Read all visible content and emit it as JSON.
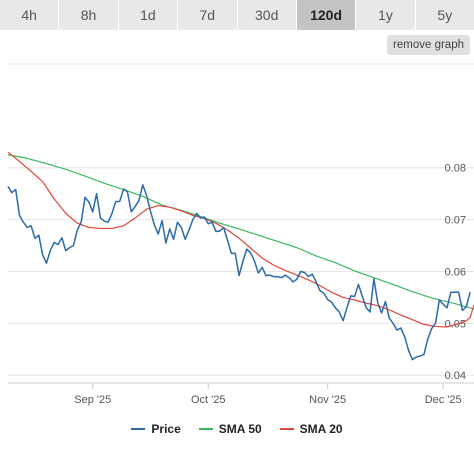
{
  "tabs": [
    {
      "label": "4h",
      "active": false
    },
    {
      "label": "8h",
      "active": false
    },
    {
      "label": "1d",
      "active": false
    },
    {
      "label": "7d",
      "active": false
    },
    {
      "label": "30d",
      "active": false
    },
    {
      "label": "120d",
      "active": true
    },
    {
      "label": "1y",
      "active": false
    },
    {
      "label": "5y",
      "active": false
    }
  ],
  "remove_graph_label": "remove graph",
  "chart_data": {
    "type": "line",
    "ylim": [
      0.0385,
      0.1
    ],
    "y_ticks": [
      0.04,
      0.05,
      0.06,
      0.07,
      0.08
    ],
    "y_tick_labels": [
      "0.04",
      "0.05",
      "0.06",
      "0.07",
      "0.08"
    ],
    "x_range": [
      0,
      121
    ],
    "x_ticks": [
      {
        "x": 22,
        "label": "Sep '25"
      },
      {
        "x": 52,
        "label": "Oct '25"
      },
      {
        "x": 83,
        "label": "Nov '25"
      },
      {
        "x": 113,
        "label": "Dec '25"
      }
    ],
    "grid": true,
    "legend_position": "bottom",
    "series": [
      {
        "name": "Price",
        "color": "#2b6aa8",
        "points": [
          [
            0,
            0.0764
          ],
          [
            1,
            0.0752
          ],
          [
            2,
            0.0758
          ],
          [
            3,
            0.0708
          ],
          [
            4,
            0.0695
          ],
          [
            5,
            0.0685
          ],
          [
            6,
            0.0688
          ],
          [
            7,
            0.0664
          ],
          [
            8,
            0.067
          ],
          [
            9,
            0.0632
          ],
          [
            10,
            0.0616
          ],
          [
            11,
            0.0641
          ],
          [
            12,
            0.0656
          ],
          [
            13,
            0.0652
          ],
          [
            14,
            0.0665
          ],
          [
            15,
            0.064
          ],
          [
            16,
            0.0646
          ],
          [
            17,
            0.065
          ],
          [
            18,
            0.068
          ],
          [
            19,
            0.0695
          ],
          [
            20,
            0.0743
          ],
          [
            21,
            0.0734
          ],
          [
            22,
            0.0715
          ],
          [
            23,
            0.075
          ],
          [
            24,
            0.0703
          ],
          [
            25,
            0.0697
          ],
          [
            26,
            0.0695
          ],
          [
            27,
            0.0712
          ],
          [
            28,
            0.0735
          ],
          [
            29,
            0.0735
          ],
          [
            30,
            0.0759
          ],
          [
            31,
            0.0754
          ],
          [
            32,
            0.0715
          ],
          [
            33,
            0.0725
          ],
          [
            34,
            0.0737
          ],
          [
            35,
            0.0767
          ],
          [
            36,
            0.0746
          ],
          [
            37,
            0.0716
          ],
          [
            38,
            0.069
          ],
          [
            39,
            0.0672
          ],
          [
            40,
            0.0698
          ],
          [
            41,
            0.0655
          ],
          [
            42,
            0.0682
          ],
          [
            43,
            0.0662
          ],
          [
            44,
            0.0695
          ],
          [
            45,
            0.0685
          ],
          [
            46,
            0.0662
          ],
          [
            47,
            0.068
          ],
          [
            48,
            0.07
          ],
          [
            49,
            0.0712
          ],
          [
            50,
            0.0703
          ],
          [
            51,
            0.0705
          ],
          [
            52,
            0.0692
          ],
          [
            53,
            0.0695
          ],
          [
            54,
            0.0677
          ],
          [
            55,
            0.0678
          ],
          [
            56,
            0.0685
          ],
          [
            57,
            0.066
          ],
          [
            58,
            0.0635
          ],
          [
            59,
            0.0635
          ],
          [
            60,
            0.0592
          ],
          [
            61,
            0.062
          ],
          [
            62,
            0.0643
          ],
          [
            63,
            0.0636
          ],
          [
            64,
            0.062
          ],
          [
            65,
            0.0597
          ],
          [
            66,
            0.0608
          ],
          [
            67,
            0.0592
          ],
          [
            68,
            0.0593
          ],
          [
            69,
            0.059
          ],
          [
            70,
            0.059
          ],
          [
            71,
            0.0588
          ],
          [
            72,
            0.0593
          ],
          [
            73,
            0.0588
          ],
          [
            74,
            0.058
          ],
          [
            75,
            0.0585
          ],
          [
            76,
            0.06
          ],
          [
            77,
            0.0598
          ],
          [
            78,
            0.059
          ],
          [
            79,
            0.0595
          ],
          [
            80,
            0.058
          ],
          [
            81,
            0.0563
          ],
          [
            82,
            0.0558
          ],
          [
            83,
            0.0546
          ],
          [
            84,
            0.0541
          ],
          [
            85,
            0.053
          ],
          [
            86,
            0.0522
          ],
          [
            87,
            0.0505
          ],
          [
            88,
            0.053
          ],
          [
            89,
            0.0553
          ],
          [
            90,
            0.0552
          ],
          [
            91,
            0.0575
          ],
          [
            92,
            0.0552
          ],
          [
            93,
            0.053
          ],
          [
            94,
            0.0522
          ],
          [
            95,
            0.0586
          ],
          [
            96,
            0.054
          ],
          [
            97,
            0.052
          ],
          [
            98,
            0.0542
          ],
          [
            99,
            0.051
          ],
          [
            100,
            0.05
          ],
          [
            101,
            0.0487
          ],
          [
            102,
            0.0491
          ],
          [
            103,
            0.0474
          ],
          [
            104,
            0.0448
          ],
          [
            105,
            0.043
          ],
          [
            106,
            0.0435
          ],
          [
            107,
            0.0437
          ],
          [
            108,
            0.044
          ],
          [
            109,
            0.047
          ],
          [
            110,
            0.049
          ],
          [
            111,
            0.05
          ],
          [
            112,
            0.0545
          ],
          [
            113,
            0.0537
          ],
          [
            114,
            0.053
          ],
          [
            115,
            0.056
          ],
          [
            116,
            0.056
          ],
          [
            117,
            0.056
          ],
          [
            118,
            0.0525
          ],
          [
            119,
            0.0532
          ],
          [
            120,
            0.056
          ]
        ]
      },
      {
        "name": "SMA 50",
        "color": "#3cb95f",
        "points": [
          [
            0,
            0.0825
          ],
          [
            5,
            0.0818
          ],
          [
            10,
            0.0808
          ],
          [
            15,
            0.0797
          ],
          [
            20,
            0.0784
          ],
          [
            25,
            0.077
          ],
          [
            30,
            0.0758
          ],
          [
            35,
            0.0745
          ],
          [
            40,
            0.0728
          ],
          [
            45,
            0.0718
          ],
          [
            50,
            0.0706
          ],
          [
            55,
            0.0693
          ],
          [
            60,
            0.0682
          ],
          [
            65,
            0.067
          ],
          [
            70,
            0.0658
          ],
          [
            75,
            0.0646
          ],
          [
            80,
            0.063
          ],
          [
            85,
            0.0617
          ],
          [
            90,
            0.0601
          ],
          [
            95,
            0.0588
          ],
          [
            100,
            0.0575
          ],
          [
            105,
            0.0561
          ],
          [
            110,
            0.0549
          ],
          [
            115,
            0.054
          ],
          [
            120,
            0.053
          ],
          [
            121,
            0.0528
          ]
        ]
      },
      {
        "name": "SMA 20",
        "color": "#e0463c",
        "points": [
          [
            0,
            0.083
          ],
          [
            3,
            0.0812
          ],
          [
            6,
            0.0793
          ],
          [
            9,
            0.0773
          ],
          [
            12,
            0.074
          ],
          [
            15,
            0.0712
          ],
          [
            18,
            0.0693
          ],
          [
            21,
            0.0685
          ],
          [
            24,
            0.0683
          ],
          [
            27,
            0.0683
          ],
          [
            30,
            0.0688
          ],
          [
            33,
            0.0703
          ],
          [
            36,
            0.072
          ],
          [
            39,
            0.0727
          ],
          [
            42,
            0.0724
          ],
          [
            45,
            0.0717
          ],
          [
            48,
            0.0708
          ],
          [
            51,
            0.0702
          ],
          [
            54,
            0.0693
          ],
          [
            57,
            0.068
          ],
          [
            60,
            0.0664
          ],
          [
            63,
            0.0645
          ],
          [
            66,
            0.0626
          ],
          [
            69,
            0.0612
          ],
          [
            72,
            0.0602
          ],
          [
            75,
            0.0593
          ],
          [
            78,
            0.0584
          ],
          [
            81,
            0.0573
          ],
          [
            84,
            0.056
          ],
          [
            87,
            0.055
          ],
          [
            90,
            0.0545
          ],
          [
            93,
            0.0539
          ],
          [
            96,
            0.0534
          ],
          [
            99,
            0.0526
          ],
          [
            102,
            0.0516
          ],
          [
            105,
            0.0507
          ],
          [
            108,
            0.0498
          ],
          [
            111,
            0.0494
          ],
          [
            114,
            0.0493
          ],
          [
            117,
            0.0499
          ],
          [
            119,
            0.0505
          ],
          [
            120,
            0.0512
          ],
          [
            121,
            0.0535
          ]
        ]
      }
    ]
  }
}
